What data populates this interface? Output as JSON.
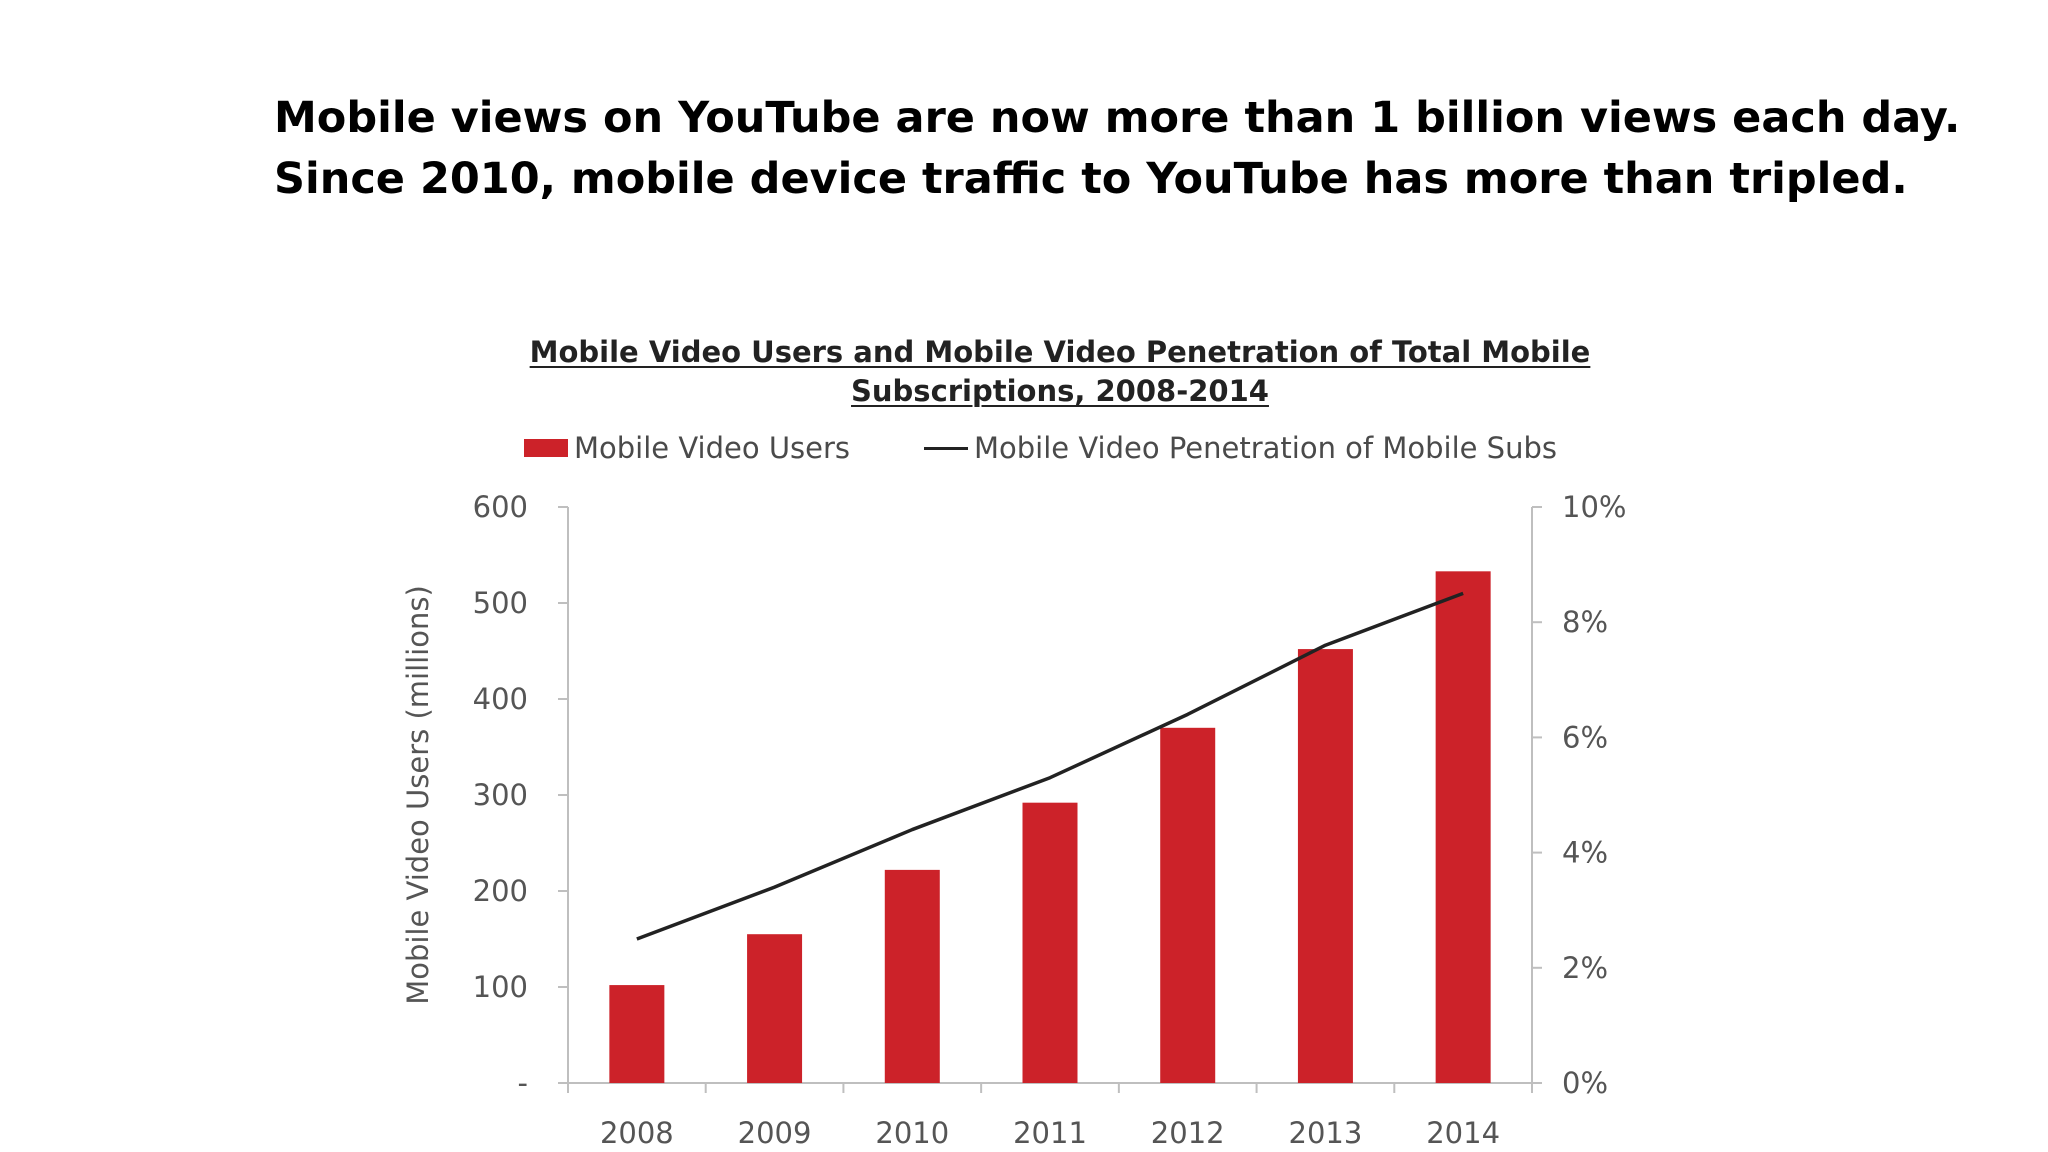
{
  "headline": {
    "line1": "Mobile views on YouTube are now more than 1 billion views each day.",
    "line2": "Since 2010, mobile device traffic to YouTube has more than tripled."
  },
  "chart_data": {
    "type": "bar",
    "title_line1": "Mobile Video Users and Mobile Video Penetration of Total Mobile",
    "title_line2": "Subscriptions, 2008-2014",
    "categories": [
      "2008",
      "2009",
      "2010",
      "2011",
      "2012",
      "2013",
      "2014"
    ],
    "series": [
      {
        "name": "Mobile Video Users",
        "type": "bar",
        "axis": "left",
        "color": "#cc2229",
        "values": [
          102,
          155,
          222,
          292,
          370,
          452,
          533
        ]
      },
      {
        "name": "Mobile Video Penetration of Mobile Subs",
        "type": "line",
        "axis": "right",
        "color": "#222222",
        "values": [
          2.5,
          3.4,
          4.4,
          5.3,
          6.4,
          7.6,
          8.5
        ]
      }
    ],
    "ylabel": "Mobile Video Users (millions)",
    "ylim": [
      0,
      600
    ],
    "y_ticks": [
      "-",
      "100",
      "200",
      "300",
      "400",
      "500",
      "600"
    ],
    "y2lim": [
      0,
      10
    ],
    "y2_ticks": [
      "0%",
      "2%",
      "4%",
      "6%",
      "8%",
      "10%"
    ],
    "legend_position": "top",
    "grid": false
  }
}
